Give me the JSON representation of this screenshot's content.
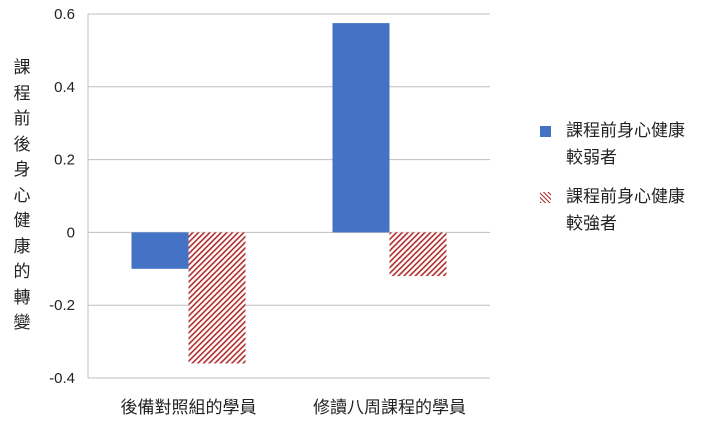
{
  "chart_data": {
    "type": "bar",
    "categories": [
      "後備對照組的學員",
      "修讀八周課程的學員"
    ],
    "series": [
      {
        "name": "課程前身心健康較弱者",
        "values": [
          -0.1,
          0.575
        ],
        "color": "#4472C4",
        "pattern": "solid"
      },
      {
        "name": "課程前身心健康較強者",
        "values": [
          -0.36,
          -0.12
        ],
        "color": "#B22C2C",
        "pattern": "hatch"
      }
    ],
    "ylabel": "課程前後身心健康的轉變",
    "ylim": [
      -0.4,
      0.6
    ],
    "yticks": [
      "0.6",
      "0.4",
      "0.2",
      "0",
      "-0.2",
      "-0.4"
    ],
    "ytick_values": [
      0.6,
      0.4,
      0.2,
      0,
      -0.2,
      -0.4
    ],
    "grid": true,
    "legend_position": "right"
  }
}
